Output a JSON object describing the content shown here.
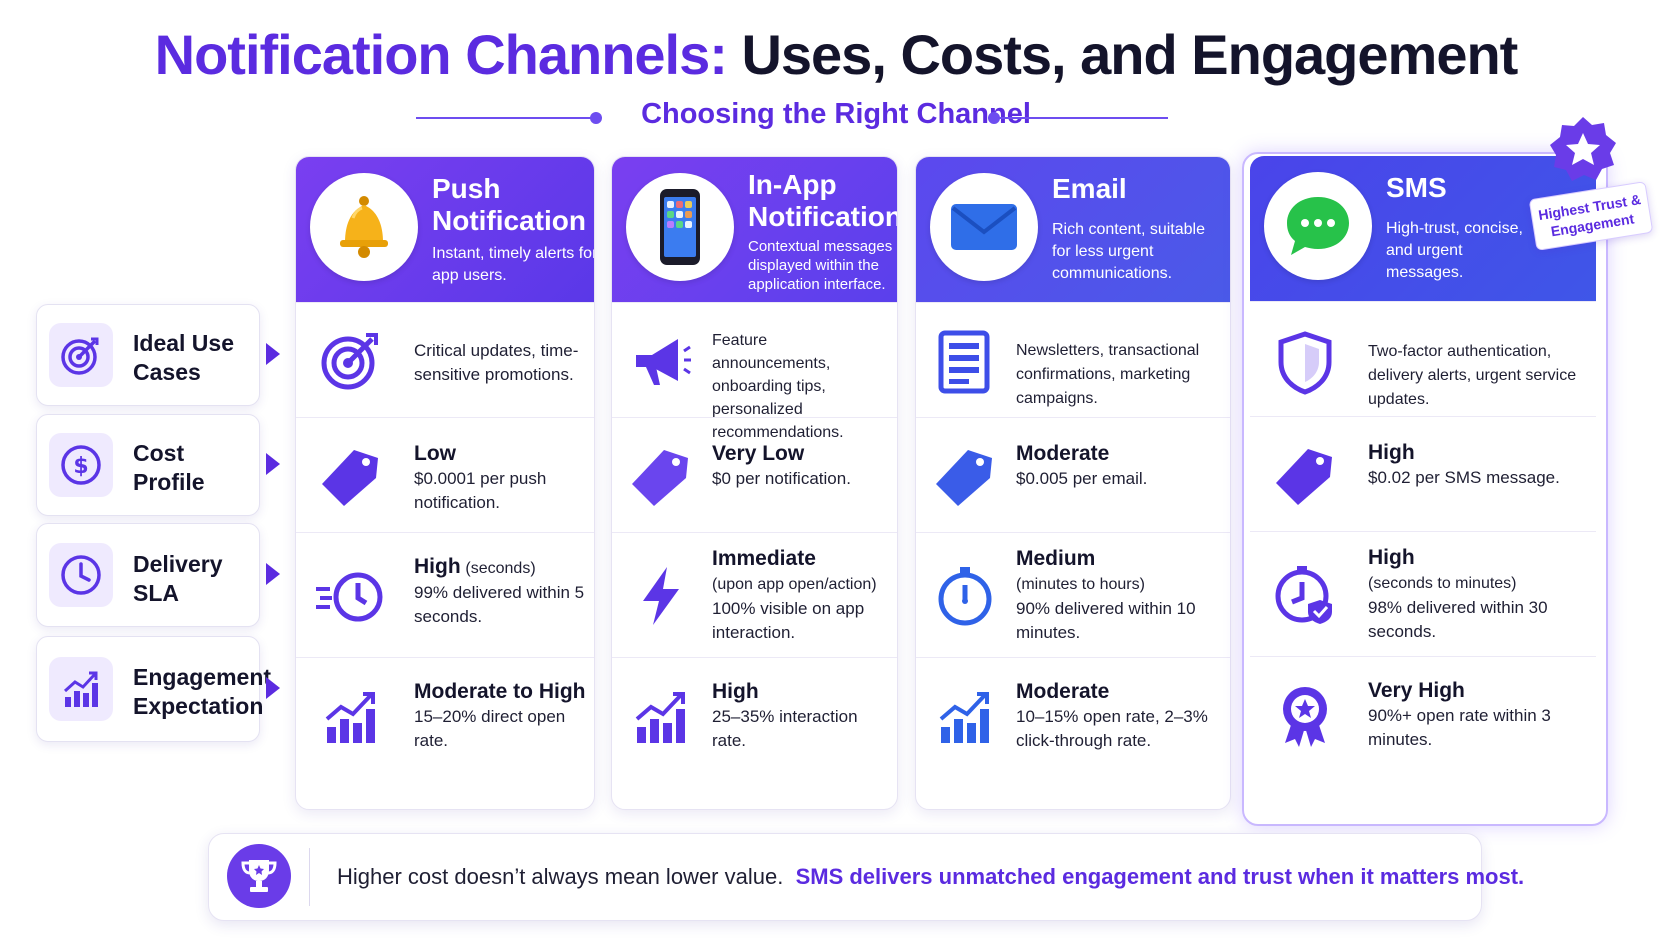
{
  "title": {
    "part1": "Notification Channels:",
    "part2": "Uses, Costs, and Engagement"
  },
  "subtitle": "Choosing the Right Channel",
  "rows": [
    {
      "label": "Ideal Use Cases",
      "icon": "target-icon"
    },
    {
      "label": "Cost Profile",
      "icon": "dollar-icon"
    },
    {
      "label": "Delivery SLA",
      "icon": "clock-icon"
    },
    {
      "label": "Engagement Expectation",
      "icon": "growth-chart-icon"
    }
  ],
  "channels": [
    {
      "name": "Push Notification",
      "description": "Instant, timely alerts for app users.",
      "icon": "bell-icon",
      "use_cases": "Critical updates, time-sensitive promotions.",
      "cost_level": "Low",
      "cost_detail": "$0.0001 per push notification.",
      "sla_level": "High",
      "sla_qualifier": "(seconds)",
      "sla_detail": "99% delivered within 5 seconds.",
      "engagement_level": "Moderate to High",
      "engagement_detail": "15–20% direct open rate."
    },
    {
      "name": "In-App Notification",
      "description": "Contextual messages displayed within the application interface.",
      "icon": "smartphone-icon",
      "use_cases": "Feature announcements, onboarding tips, personalized recommendations.",
      "cost_level": "Very Low",
      "cost_detail": "$0 per notification.",
      "sla_level": "Immediate",
      "sla_qualifier": "(upon app open/action)",
      "sla_detail": "100% visible on app interaction.",
      "engagement_level": "High",
      "engagement_detail": "25–35% interaction rate."
    },
    {
      "name": "Email",
      "description": "Rich content, suitable for less urgent communications.",
      "icon": "envelope-icon",
      "use_cases": "Newsletters, transactional confirmations, marketing campaigns.",
      "cost_level": "Moderate",
      "cost_detail": "$0.005 per email.",
      "sla_level": "Medium",
      "sla_qualifier": "(minutes to hours)",
      "sla_detail": "90% delivered within 10 minutes.",
      "engagement_level": "Moderate",
      "engagement_detail": "10–15% open rate, 2–3% click-through rate."
    },
    {
      "name": "SMS",
      "description": "High-trust, concise, and urgent messages.",
      "icon": "chat-bubble-icon",
      "use_cases": "Two-factor authentication, delivery alerts, urgent service updates.",
      "cost_level": "High",
      "cost_detail": "$0.02 per SMS message.",
      "sla_level": "High",
      "sla_qualifier": "(seconds to minutes)",
      "sla_detail": "98% delivered within 30 seconds.",
      "engagement_level": "Very High",
      "engagement_detail": "90%+ open rate within 3 minutes."
    }
  ],
  "badge": "Highest Trust & Engagement",
  "footer": {
    "text": "Higher cost doesn’t always mean lower value.",
    "highlight": "SMS delivers unmatched engagement and trust when it matters most."
  },
  "colors": {
    "accent": "#5b2be0",
    "header_a": "#6a3ce8",
    "header_b": "#4a55e8",
    "icon": "#5b35e6"
  }
}
